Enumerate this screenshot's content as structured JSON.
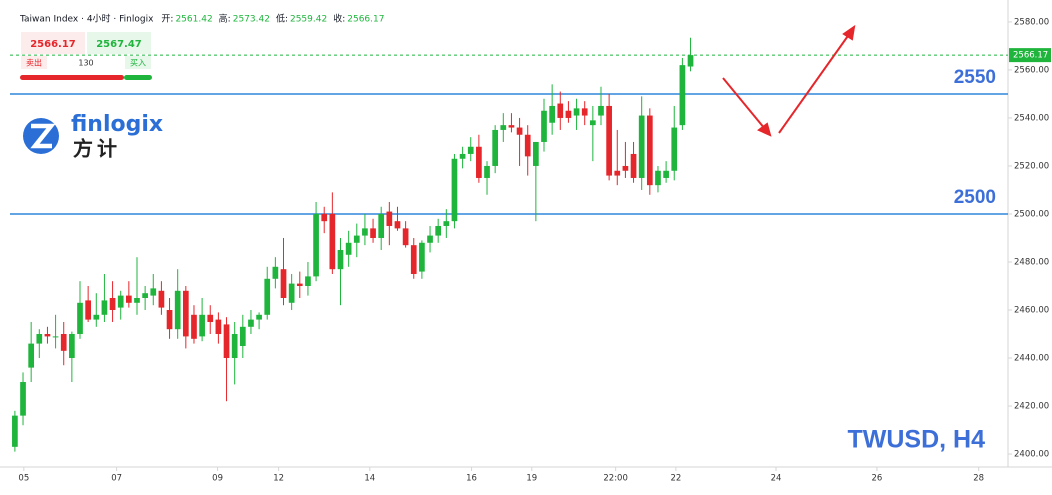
{
  "chart_data": {
    "type": "candlestick",
    "header": {
      "title": "Taiwan Index · 4小时 · Finlogix",
      "fields": [
        {
          "label": "开:",
          "value": "2561.42"
        },
        {
          "label": "高:",
          "value": "2573.42"
        },
        {
          "label": "低:",
          "value": "2559.42"
        },
        {
          "label": "收:",
          "value": "2566.17"
        }
      ]
    },
    "trade": {
      "sell_price": "2566.17",
      "buy_price": "2567.47",
      "sell_label": "卖出",
      "quantity": "130",
      "buy_label": "买入"
    },
    "logo": {
      "name": "finlogix",
      "name_cn": "方计"
    },
    "watermark": "TWUSD, H4",
    "up_color": "#1fb53d",
    "down_color": "#e5262b",
    "open": [
      2403,
      2416,
      2436,
      2446,
      2450,
      2449,
      2450,
      2440,
      2450,
      2464,
      2456,
      2458,
      2465,
      2461,
      2466,
      2463,
      2465,
      2466,
      2468,
      2460,
      2452,
      2468,
      2458,
      2449,
      2458,
      2456,
      2454,
      2440,
      2445,
      2453,
      2456,
      2458,
      2473,
      2477,
      2463,
      2471,
      2470,
      2474,
      2500,
      2500,
      2477,
      2483,
      2488,
      2491,
      2494,
      2490,
      2501,
      2497,
      2494,
      2487,
      2476,
      2488,
      2491,
      2495,
      2497,
      2523,
      2525,
      2528,
      2515,
      2520,
      2535,
      2537,
      2536,
      2533,
      2520,
      2530,
      2538,
      2546,
      2543,
      2541,
      2544,
      2537,
      2541,
      2545,
      2518,
      2520,
      2525,
      2515,
      2541,
      2512,
      2515,
      2518,
      2537,
      2561.42
    ],
    "high": [
      2418,
      2434,
      2455,
      2452,
      2453,
      2458,
      2455,
      2451,
      2472,
      2470,
      2467,
      2475,
      2472,
      2468,
      2472,
      2482,
      2470,
      2475,
      2472,
      2465,
      2477,
      2470,
      2462,
      2465,
      2462,
      2459,
      2457,
      2455,
      2458,
      2460,
      2459,
      2478,
      2482,
      2490,
      2475,
      2476,
      2480,
      2505,
      2503,
      2509,
      2490,
      2493,
      2496,
      2500,
      2498,
      2503,
      2505,
      2503,
      2497,
      2490,
      2489,
      2495,
      2498,
      2502,
      2525,
      2528,
      2532,
      2533,
      2522,
      2537,
      2542,
      2542,
      2540,
      2537,
      2530,
      2548,
      2554,
      2551,
      2547,
      2548,
      2547,
      2545,
      2553,
      2550,
      2535,
      2530,
      2530,
      2549,
      2544,
      2520,
      2522,
      2545,
      2565,
      2573.42
    ],
    "low": [
      2401,
      2412,
      2430,
      2440,
      2446,
      2444,
      2437,
      2430,
      2448,
      2455,
      2453,
      2455,
      2455,
      2456,
      2461,
      2458,
      2460,
      2462,
      2458,
      2448,
      2448,
      2444,
      2446,
      2447,
      2450,
      2446,
      2422,
      2429,
      2440,
      2450,
      2452,
      2456,
      2469,
      2462,
      2460,
      2465,
      2466,
      2472,
      2492,
      2475,
      2462,
      2478,
      2482,
      2487,
      2488,
      2485,
      2487,
      2493,
      2486,
      2473,
      2473,
      2484,
      2488,
      2490,
      2494,
      2519,
      2522,
      2513,
      2508,
      2517,
      2530,
      2534,
      2520,
      2516,
      2497,
      2526,
      2533,
      2535,
      2538,
      2535,
      2537,
      2522,
      2537,
      2514,
      2512,
      2515,
      2513,
      2510,
      2508,
      2509,
      2513,
      2514,
      2535,
      2559.42
    ],
    "close": [
      2416,
      2430,
      2446,
      2450,
      2449,
      2449,
      2443,
      2450,
      2463,
      2456,
      2458,
      2464,
      2460,
      2466,
      2463,
      2465,
      2467,
      2469,
      2461,
      2452,
      2468,
      2449,
      2448,
      2458,
      2455,
      2450,
      2440,
      2450,
      2453,
      2456,
      2458,
      2473,
      2478,
      2465,
      2471,
      2470,
      2474,
      2500,
      2497,
      2477,
      2485,
      2488,
      2491,
      2494,
      2490,
      2500,
      2495,
      2494,
      2487,
      2475,
      2488,
      2491,
      2495,
      2497,
      2523,
      2525,
      2528,
      2515,
      2520,
      2535,
      2537,
      2536,
      2533,
      2524,
      2530,
      2543,
      2545,
      2540,
      2540,
      2544,
      2541,
      2539,
      2545,
      2516,
      2516,
      2518,
      2515,
      2541,
      2512,
      2518,
      2518,
      2536,
      2562,
      2566.17
    ],
    "xlim": [
      -0.6,
      122
    ],
    "xticks": [
      {
        "value": 1.1,
        "label": "05"
      },
      {
        "value": 12.5,
        "label": "07"
      },
      {
        "value": 24.9,
        "label": "09"
      },
      {
        "value": 32.4,
        "label": "12"
      },
      {
        "value": 43.6,
        "label": "14"
      },
      {
        "value": 56.1,
        "label": "16"
      },
      {
        "value": 63.5,
        "label": "19"
      },
      {
        "value": 73.8,
        "label": "22:00"
      },
      {
        "value": 81.2,
        "label": "22"
      },
      {
        "value": 93.5,
        "label": "24"
      },
      {
        "value": 105.9,
        "label": "26"
      },
      {
        "value": 118.4,
        "label": "28"
      }
    ],
    "ylim": [
      2394.6,
      2585.8
    ],
    "yticks": [
      {
        "value": 2400,
        "label": "2400.00"
      },
      {
        "value": 2420,
        "label": "2420.00"
      },
      {
        "value": 2440,
        "label": "2440.00"
      },
      {
        "value": 2460,
        "label": "2460.00"
      },
      {
        "value": 2480,
        "label": "2480.00"
      },
      {
        "value": 2500,
        "label": "2500.00"
      },
      {
        "value": 2520,
        "label": "2520.00"
      },
      {
        "value": 2540,
        "label": "2540.00"
      },
      {
        "value": 2560,
        "label": "2560.00"
      },
      {
        "value": 2580,
        "label": "2580.00"
      }
    ],
    "hlines": [
      {
        "value": 2550,
        "label": "2550"
      },
      {
        "value": 2500,
        "label": "2500"
      }
    ],
    "hline_color": "#2f86dc",
    "last_price": {
      "value": 2566.17,
      "label": "2566.17"
    }
  }
}
